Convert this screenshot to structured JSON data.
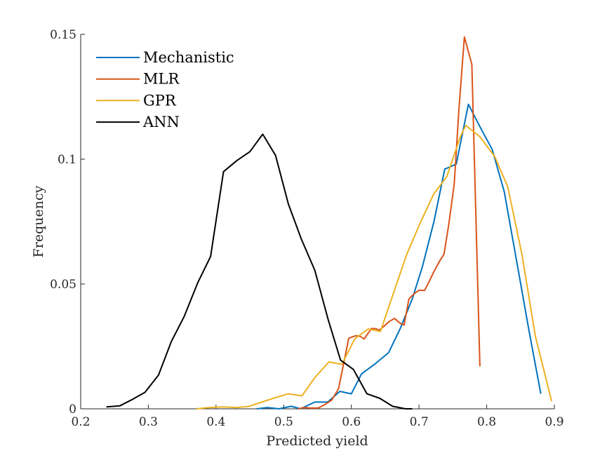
{
  "chart_data": {
    "type": "line",
    "title": "",
    "xlabel": "Predicted yield",
    "ylabel": "Frequency",
    "xlim": [
      0.2,
      0.9
    ],
    "ylim": [
      0,
      0.15
    ],
    "xticks": [
      "0.2",
      "0.3",
      "0.4",
      "0.5",
      "0.6",
      "0.7",
      "0.8",
      "0.9"
    ],
    "yticks": [
      "0",
      "0.05",
      "0.1",
      "0.15"
    ],
    "grid": false,
    "legend_position": "top-left",
    "series": [
      {
        "name": "Mechanistic",
        "color": "#0072BD",
        "x": [
          0.46,
          0.476,
          0.493,
          0.511,
          0.525,
          0.546,
          0.565,
          0.583,
          0.6,
          0.615,
          0.635,
          0.655,
          0.672,
          0.69,
          0.705,
          0.722,
          0.738,
          0.755,
          0.773,
          0.79,
          0.808,
          0.826,
          0.845,
          0.862,
          0.88
        ],
        "y": [
          0.0,
          0.0005,
          0.0,
          0.001,
          0.0,
          0.0027,
          0.0027,
          0.007,
          0.006,
          0.014,
          0.018,
          0.0225,
          0.032,
          0.044,
          0.057,
          0.075,
          0.096,
          0.098,
          0.122,
          0.113,
          0.104,
          0.087,
          0.058,
          0.032,
          0.006
        ]
      },
      {
        "name": "MLR",
        "color": "#D95319",
        "x": [
          0.521,
          0.53,
          0.54,
          0.551,
          0.561,
          0.571,
          0.581,
          0.59,
          0.596,
          0.601,
          0.607,
          0.613,
          0.619,
          0.624,
          0.63,
          0.636,
          0.641,
          0.648,
          0.656,
          0.664,
          0.671,
          0.678,
          0.685,
          0.692,
          0.7,
          0.708,
          0.715,
          0.722,
          0.73,
          0.737,
          0.744,
          0.752,
          0.759,
          0.767,
          0.778,
          0.79
        ],
        "y": [
          0.0,
          0.0005,
          0.0003,
          0.0003,
          0.0017,
          0.0035,
          0.008,
          0.02,
          0.0282,
          0.0288,
          0.0293,
          0.029,
          0.028,
          0.03,
          0.0322,
          0.0321,
          0.0315,
          0.033,
          0.035,
          0.0362,
          0.0345,
          0.0335,
          0.044,
          0.0459,
          0.0475,
          0.0474,
          0.051,
          0.055,
          0.059,
          0.062,
          0.074,
          0.09,
          0.12,
          0.149,
          0.138,
          0.017
        ]
      },
      {
        "name": "GPR",
        "color": "#EDB120",
        "x": [
          0.371,
          0.39,
          0.41,
          0.43,
          0.449,
          0.469,
          0.488,
          0.507,
          0.527,
          0.546,
          0.567,
          0.586,
          0.605,
          0.625,
          0.643,
          0.663,
          0.682,
          0.701,
          0.722,
          0.741,
          0.761,
          0.769,
          0.79,
          0.812,
          0.831,
          0.852,
          0.872,
          0.896
        ],
        "y": [
          0.0,
          0.0005,
          0.0008,
          0.0005,
          0.001,
          0.0028,
          0.0045,
          0.006,
          0.0052,
          0.0125,
          0.0188,
          0.0178,
          0.028,
          0.032,
          0.031,
          0.047,
          0.062,
          0.074,
          0.0862,
          0.093,
          0.109,
          0.1135,
          0.109,
          0.101,
          0.089,
          0.062,
          0.029,
          0.003
        ]
      },
      {
        "name": "ANN",
        "color": "#000000",
        "x": [
          0.238,
          0.258,
          0.276,
          0.295,
          0.315,
          0.334,
          0.353,
          0.373,
          0.392,
          0.411,
          0.431,
          0.45,
          0.469,
          0.488,
          0.507,
          0.526,
          0.546,
          0.566,
          0.584,
          0.603,
          0.623,
          0.642,
          0.661,
          0.68,
          0.69
        ],
        "y": [
          0.0008,
          0.0012,
          0.0037,
          0.0066,
          0.0135,
          0.027,
          0.037,
          0.0505,
          0.061,
          0.095,
          0.0995,
          0.103,
          0.11,
          0.1015,
          0.082,
          0.068,
          0.0555,
          0.0355,
          0.0195,
          0.0158,
          0.006,
          0.0042,
          0.001,
          0.0,
          0.0
        ]
      }
    ]
  }
}
